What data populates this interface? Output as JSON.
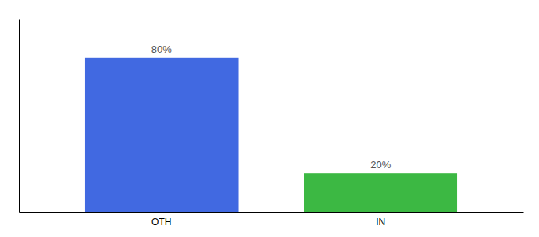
{
  "chart_data": {
    "type": "bar",
    "categories": [
      "OTH",
      "IN"
    ],
    "values": [
      80,
      20
    ],
    "value_labels": [
      "80%",
      "20%"
    ],
    "colors": [
      "#4169E1",
      "#3CB843"
    ],
    "ylim": [
      0,
      100
    ],
    "data_labels": true,
    "tick_labels": "x",
    "grid": false
  }
}
